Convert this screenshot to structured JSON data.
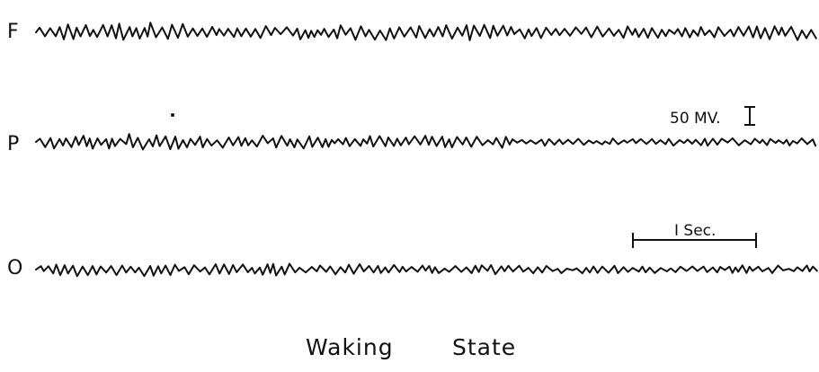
{
  "channels": [
    {
      "label": "F"
    },
    {
      "label": "P"
    },
    {
      "label": "O"
    }
  ],
  "voltage_scale": {
    "label": "50 MV."
  },
  "time_scale": {
    "label": "I Sec."
  },
  "caption": {
    "word1": "Waking",
    "word2": "State"
  }
}
